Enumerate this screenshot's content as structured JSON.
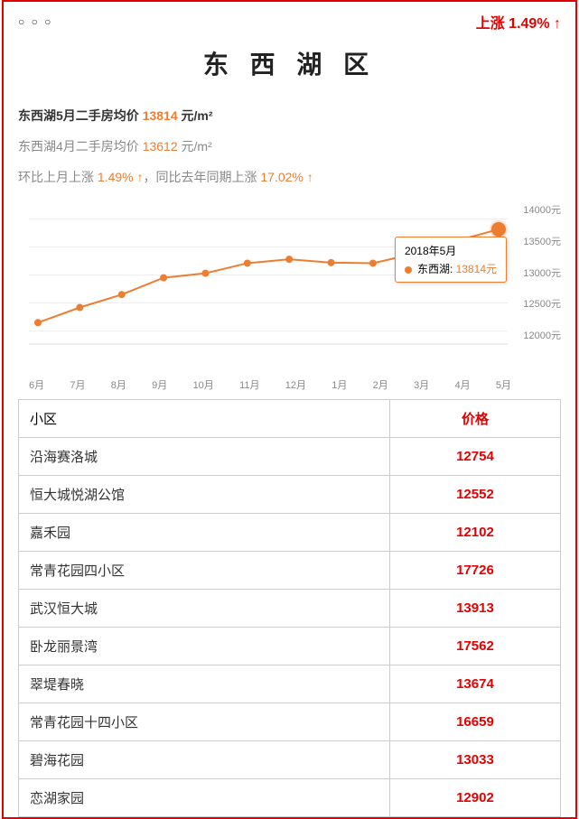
{
  "top": {
    "dots": "○ ○ ○",
    "badge_prefix": "上涨 ",
    "badge_value": "1.49%",
    "badge_arrow": " ↑"
  },
  "title": "东 西 湖 区",
  "lines": {
    "may_label": "东西湖5月二手房均价 ",
    "may_value": "13814",
    "may_unit": " 元/m²",
    "apr_label": "东西湖4月二手房均价 ",
    "apr_value": "13612",
    "apr_unit": " 元/m²",
    "mom_prefix": "环比上月上涨 ",
    "mom_value": "1.49% ↑",
    "yoy_sep": "，同比去年同期上涨 ",
    "yoy_value": "17.02% ↑"
  },
  "chart": {
    "line_color": "#ed7d31",
    "line_width": 2,
    "marker_size": 4,
    "final_marker_size": 7,
    "final_marker_fill": "#fff",
    "final_marker_stroke": "#ed7d31",
    "grid_color": "#eeeeee",
    "axis_color": "#dddddd",
    "plot_bg": "#ffffff",
    "ylim": [
      11800,
      14200
    ],
    "y_ticks": [
      14000,
      13500,
      13000,
      12500,
      12000
    ],
    "y_tick_labels": [
      "14000元",
      "13500元",
      "13000元",
      "12500元",
      "12000元"
    ],
    "x_labels": [
      "6月",
      "7月",
      "8月",
      "9月",
      "10月",
      "11月",
      "12月",
      "1月",
      "2月",
      "3月",
      "4月",
      "5月"
    ],
    "values": [
      12150,
      12420,
      12650,
      12950,
      13030,
      13210,
      13280,
      13220,
      13210,
      13380,
      13610,
      13814
    ],
    "tooltip": {
      "line1": "2018年5月",
      "label": "东西湖:",
      "value": "13814元"
    }
  },
  "table": {
    "col1_header": "小区",
    "col2_header": "价格",
    "rows": [
      {
        "name": "沿海赛洛城",
        "price": "12754"
      },
      {
        "name": "恒大城悦湖公馆",
        "price": "12552"
      },
      {
        "name": "嘉禾园",
        "price": "12102"
      },
      {
        "name": "常青花园四小区",
        "price": "17726"
      },
      {
        "name": "武汉恒大城",
        "price": "13913"
      },
      {
        "name": "卧龙丽景湾",
        "price": "17562"
      },
      {
        "name": "翠堤春晓",
        "price": "13674"
      },
      {
        "name": "常青花园十四小区",
        "price": "16659"
      },
      {
        "name": "碧海花园",
        "price": "13033"
      },
      {
        "name": "恋湖家园",
        "price": "12902"
      }
    ]
  }
}
